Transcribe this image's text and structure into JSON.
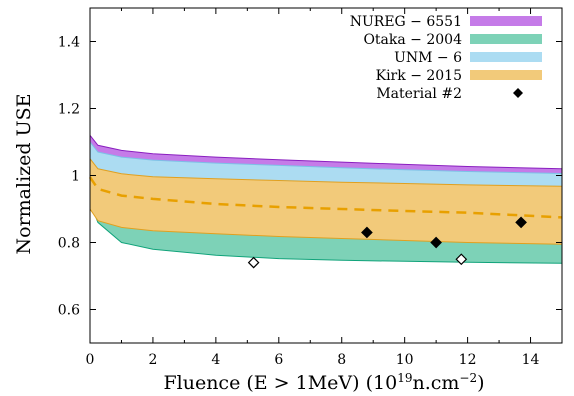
{
  "chart_data": {
    "type": "area",
    "title": "",
    "xlabel": "Fluence (E > 1MeV) (10",
    "xlabel_sup": "19",
    "xlabel_mid": "n.cm",
    "xlabel_sup2": "−2",
    "xlabel_end": ")",
    "ylabel": "Normalized USE",
    "xlim": [
      0,
      15
    ],
    "ylim": [
      0.5,
      1.5
    ],
    "xticks": [
      0,
      2,
      4,
      6,
      8,
      10,
      12,
      14
    ],
    "xtick_labels": [
      "0",
      "2",
      "4",
      "6",
      "8",
      "10",
      "12",
      "14"
    ],
    "yticks": [
      0.6,
      0.8,
      1.0,
      1.2,
      1.4
    ],
    "ytick_labels": [
      "0.6",
      "0.8",
      "1",
      "1.2",
      "1.4"
    ],
    "grid": false,
    "legend_position": "top-right",
    "bands": [
      {
        "name": "NUREG − 6551",
        "color": "#c57be8",
        "stroke": "#8a1fbf",
        "upper": [
          [
            0,
            1.12
          ],
          [
            0.25,
            1.09
          ],
          [
            1,
            1.075
          ],
          [
            2,
            1.065
          ],
          [
            4,
            1.055
          ],
          [
            6,
            1.047
          ],
          [
            8,
            1.04
          ],
          [
            10,
            1.033
          ],
          [
            12,
            1.027
          ],
          [
            15,
            1.02
          ]
        ],
        "lower": [
          [
            0,
            0.9
          ],
          [
            0.25,
            0.87
          ],
          [
            1,
            0.858
          ],
          [
            2,
            0.85
          ],
          [
            4,
            0.84
          ],
          [
            6,
            0.832
          ],
          [
            8,
            0.825
          ],
          [
            10,
            0.818
          ],
          [
            12,
            0.812
          ],
          [
            15,
            0.806
          ]
        ]
      },
      {
        "name": "Otaka − 2004",
        "color": "#7dd2b7",
        "stroke": "#10a37a",
        "upper": [
          [
            0,
            1.06
          ],
          [
            0.25,
            1.03
          ],
          [
            1,
            1.0
          ],
          [
            2,
            0.985
          ],
          [
            4,
            0.972
          ],
          [
            6,
            0.962
          ],
          [
            8,
            0.955
          ],
          [
            10,
            0.95
          ],
          [
            12,
            0.946
          ],
          [
            15,
            0.942
          ]
        ],
        "lower": [
          [
            0,
            0.92
          ],
          [
            0.25,
            0.86
          ],
          [
            1,
            0.8
          ],
          [
            2,
            0.78
          ],
          [
            4,
            0.762
          ],
          [
            6,
            0.752
          ],
          [
            8,
            0.747
          ],
          [
            10,
            0.744
          ],
          [
            12,
            0.741
          ],
          [
            15,
            0.738
          ]
        ]
      },
      {
        "name": "UNM − 6",
        "color": "#acdcf2",
        "stroke": "#7dc0e6",
        "upper": [
          [
            0,
            1.1
          ],
          [
            0.25,
            1.07
          ],
          [
            1,
            1.055
          ],
          [
            2,
            1.046
          ],
          [
            4,
            1.037
          ],
          [
            6,
            1.03
          ],
          [
            8,
            1.023
          ],
          [
            10,
            1.017
          ],
          [
            12,
            1.012
          ],
          [
            15,
            1.006
          ]
        ],
        "lower": [
          [
            0,
            0.9
          ],
          [
            0.25,
            0.87
          ],
          [
            1,
            0.856
          ],
          [
            2,
            0.848
          ],
          [
            4,
            0.838
          ],
          [
            6,
            0.83
          ],
          [
            8,
            0.823
          ],
          [
            10,
            0.816
          ],
          [
            12,
            0.81
          ],
          [
            15,
            0.804
          ]
        ]
      },
      {
        "name": "Kirk − 2015",
        "color": "#f2ca7a",
        "stroke": "#e0a020",
        "upper": [
          [
            0,
            1.05
          ],
          [
            0.25,
            1.02
          ],
          [
            1,
            1.005
          ],
          [
            2,
            0.996
          ],
          [
            4,
            0.99
          ],
          [
            6,
            0.985
          ],
          [
            8,
            0.98
          ],
          [
            10,
            0.976
          ],
          [
            12,
            0.972
          ],
          [
            15,
            0.968
          ]
        ],
        "lower": [
          [
            0,
            0.9
          ],
          [
            0.25,
            0.865
          ],
          [
            1,
            0.845
          ],
          [
            2,
            0.835
          ],
          [
            4,
            0.826
          ],
          [
            6,
            0.818
          ],
          [
            8,
            0.812
          ],
          [
            10,
            0.806
          ],
          [
            12,
            0.8
          ],
          [
            15,
            0.795
          ]
        ],
        "mean": [
          [
            0,
            0.995
          ],
          [
            0.25,
            0.96
          ],
          [
            1,
            0.94
          ],
          [
            2,
            0.93
          ],
          [
            4,
            0.915
          ],
          [
            6,
            0.906
          ],
          [
            8,
            0.9
          ],
          [
            10,
            0.894
          ],
          [
            12,
            0.889
          ],
          [
            15,
            0.875
          ]
        ],
        "mean_color": "#e8a000"
      }
    ],
    "points": {
      "name": "Material #2",
      "filled": [
        [
          8.8,
          0.83
        ],
        [
          11.0,
          0.8
        ],
        [
          13.7,
          0.86
        ]
      ],
      "open": [
        [
          5.2,
          0.74
        ],
        [
          11.8,
          0.75
        ]
      ]
    }
  }
}
